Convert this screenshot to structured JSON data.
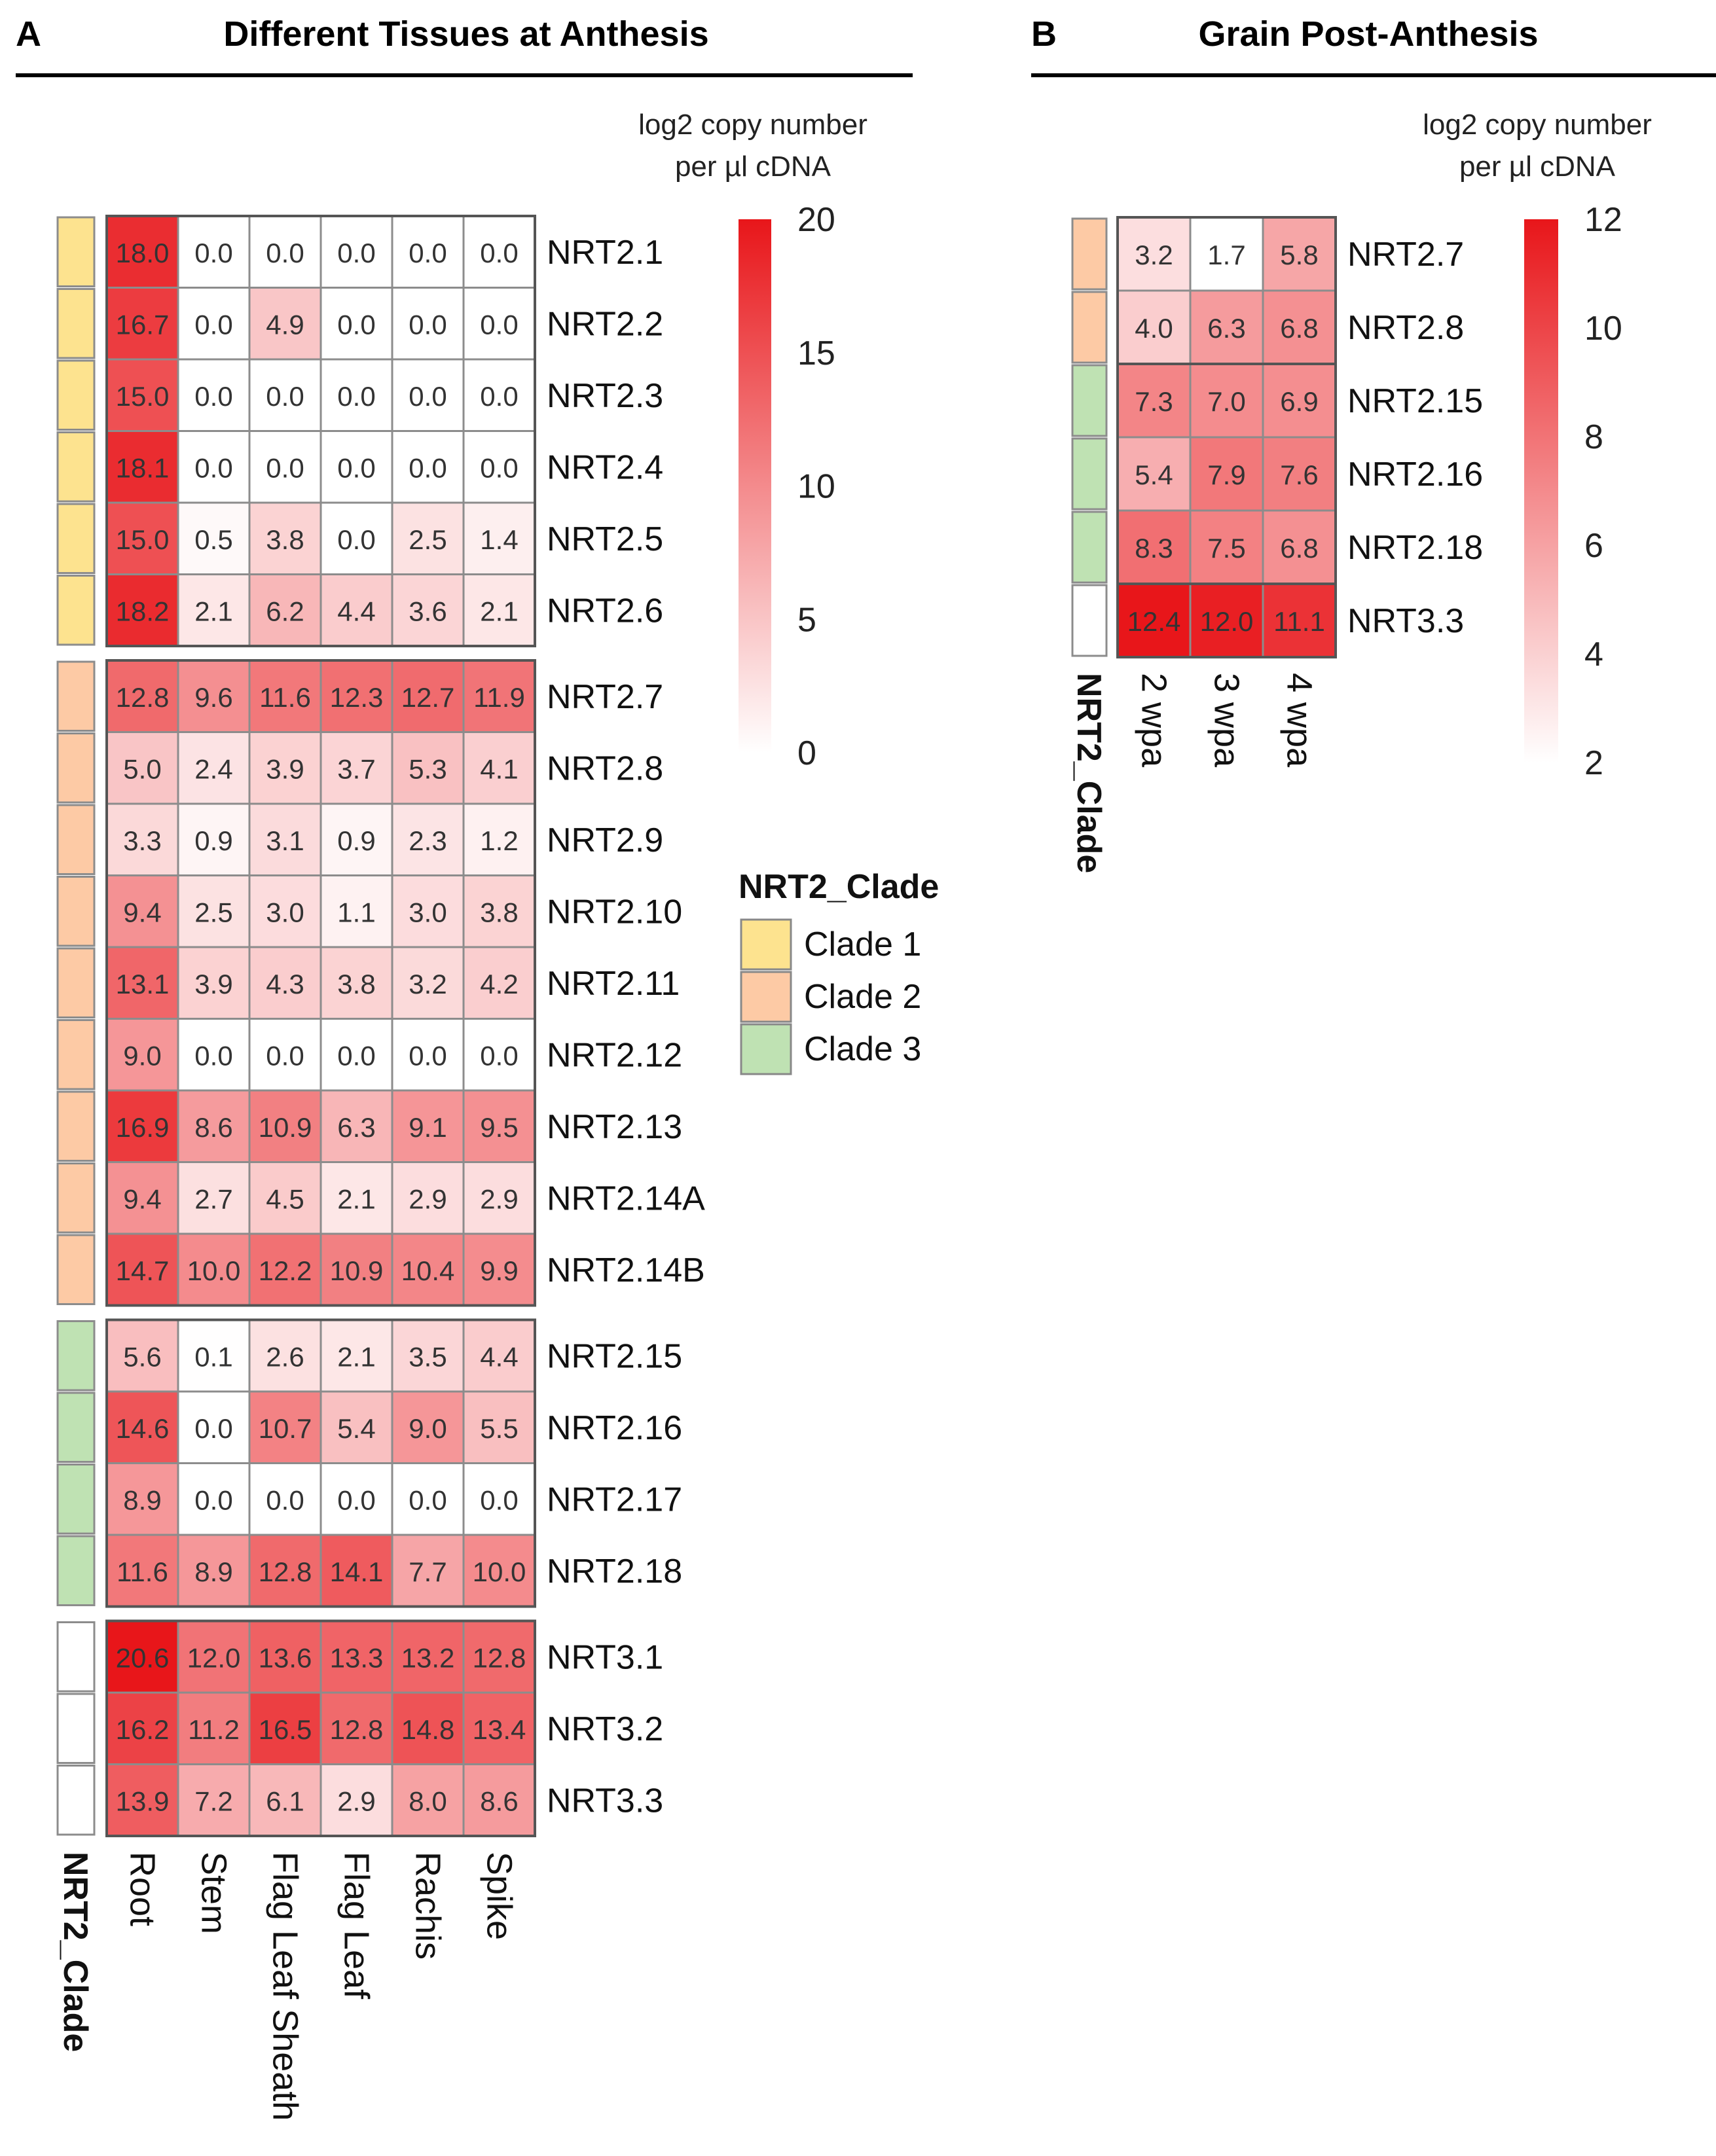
{
  "chart_data": [
    {
      "type": "heatmap",
      "panel_label": "A",
      "title": "Different Tissues at Anthesis",
      "legend_title_line1": "log2 copy number",
      "legend_title_line2": "per µl cDNA",
      "colorbar_ticks": [
        "20",
        "15",
        "10",
        "5",
        "0"
      ],
      "color_range": [
        0,
        20
      ],
      "annotation_title": "NRT2_Clade",
      "columns": [
        "Root",
        "Stem",
        "Flag Leaf Sheath",
        "Flag Leaf",
        "Rachis",
        "Spike"
      ],
      "row_groups": [
        {
          "clade": "Clade 1",
          "rows": [
            {
              "label": "NRT2.1",
              "values": [
                18.0,
                0.0,
                0.0,
                0.0,
                0.0,
                0.0
              ],
              "value_labels": [
                "18.0",
                "0.0",
                "0.0",
                "0.0",
                "0.0",
                "0.0"
              ]
            },
            {
              "label": "NRT2.2",
              "values": [
                16.7,
                0.0,
                4.9,
                0.0,
                0.0,
                0.0
              ],
              "value_labels": [
                "16.7",
                "0.0",
                "4.9",
                "0.0",
                "0.0",
                "0.0"
              ]
            },
            {
              "label": "NRT2.3",
              "values": [
                15.0,
                0.0,
                0.0,
                0.0,
                0.0,
                0.0
              ],
              "value_labels": [
                "15.0",
                "0.0",
                "0.0",
                "0.0",
                "0.0",
                "0.0"
              ]
            },
            {
              "label": "NRT2.4",
              "values": [
                18.1,
                0.0,
                0.0,
                0.0,
                0.0,
                0.0
              ],
              "value_labels": [
                "18.1",
                "0.0",
                "0.0",
                "0.0",
                "0.0",
                "0.0"
              ]
            },
            {
              "label": "NRT2.5",
              "values": [
                15.0,
                0.5,
                3.8,
                0.0,
                2.5,
                1.4
              ],
              "value_labels": [
                "15.0",
                "0.5",
                "3.8",
                "0.0",
                "2.5",
                "1.4"
              ]
            },
            {
              "label": "NRT2.6",
              "values": [
                18.2,
                2.1,
                6.2,
                4.4,
                3.6,
                2.1
              ],
              "value_labels": [
                "18.2",
                "2.1",
                "6.2",
                "4.4",
                "3.6",
                "2.1"
              ]
            }
          ]
        },
        {
          "clade": "Clade 2",
          "rows": [
            {
              "label": "NRT2.7",
              "values": [
                12.8,
                9.6,
                11.6,
                12.3,
                12.7,
                11.9
              ],
              "value_labels": [
                "12.8",
                "9.6",
                "11.6",
                "12.3",
                "12.7",
                "11.9"
              ]
            },
            {
              "label": "NRT2.8",
              "values": [
                5.0,
                2.4,
                3.9,
                3.7,
                5.3,
                4.1
              ],
              "value_labels": [
                "5.0",
                "2.4",
                "3.9",
                "3.7",
                "5.3",
                "4.1"
              ]
            },
            {
              "label": "NRT2.9",
              "values": [
                3.3,
                0.9,
                3.1,
                0.9,
                2.3,
                1.2
              ],
              "value_labels": [
                "3.3",
                "0.9",
                "3.1",
                "0.9",
                "2.3",
                "1.2"
              ]
            },
            {
              "label": "NRT2.10",
              "values": [
                9.4,
                2.5,
                3.0,
                1.1,
                3.0,
                3.8
              ],
              "value_labels": [
                "9.4",
                "2.5",
                "3.0",
                "1.1",
                "3.0",
                "3.8"
              ]
            },
            {
              "label": "NRT2.11",
              "values": [
                13.1,
                3.9,
                4.3,
                3.8,
                3.2,
                4.2
              ],
              "value_labels": [
                "13.1",
                "3.9",
                "4.3",
                "3.8",
                "3.2",
                "4.2"
              ]
            },
            {
              "label": "NRT2.12",
              "values": [
                9.0,
                0.0,
                0.0,
                0.0,
                0.0,
                0.0
              ],
              "value_labels": [
                "9.0",
                "0.0",
                "0.0",
                "0.0",
                "0.0",
                "0.0"
              ]
            },
            {
              "label": "NRT2.13",
              "values": [
                16.9,
                8.6,
                10.9,
                6.3,
                9.1,
                9.5
              ],
              "value_labels": [
                "16.9",
                "8.6",
                "10.9",
                "6.3",
                "9.1",
                "9.5"
              ]
            },
            {
              "label": "NRT2.14A",
              "values": [
                9.4,
                2.7,
                4.5,
                2.1,
                2.9,
                2.9
              ],
              "value_labels": [
                "9.4",
                "2.7",
                "4.5",
                "2.1",
                "2.9",
                "2.9"
              ]
            },
            {
              "label": "NRT2.14B",
              "values": [
                14.7,
                10.0,
                12.2,
                10.9,
                10.4,
                9.9
              ],
              "value_labels": [
                "14.7",
                "10.0",
                "12.2",
                "10.9",
                "10.4",
                "9.9"
              ]
            }
          ]
        },
        {
          "clade": "Clade 3",
          "rows": [
            {
              "label": "NRT2.15",
              "values": [
                5.6,
                0.1,
                2.6,
                2.1,
                3.5,
                4.4
              ],
              "value_labels": [
                "5.6",
                "0.1",
                "2.6",
                "2.1",
                "3.5",
                "4.4"
              ]
            },
            {
              "label": "NRT2.16",
              "values": [
                14.6,
                0.0,
                10.7,
                5.4,
                9.0,
                5.5
              ],
              "value_labels": [
                "14.6",
                "0.0",
                "10.7",
                "5.4",
                "9.0",
                "5.5"
              ]
            },
            {
              "label": "NRT2.17",
              "values": [
                8.9,
                0.0,
                0.0,
                0.0,
                0.0,
                0.0
              ],
              "value_labels": [
                "8.9",
                "0.0",
                "0.0",
                "0.0",
                "0.0",
                "0.0"
              ]
            },
            {
              "label": "NRT2.18",
              "values": [
                11.6,
                8.9,
                12.8,
                14.1,
                7.7,
                10.0
              ],
              "value_labels": [
                "11.6",
                "8.9",
                "12.8",
                "14.1",
                "7.7",
                "10.0"
              ]
            }
          ]
        },
        {
          "clade": "",
          "rows": [
            {
              "label": "NRT3.1",
              "values": [
                20.6,
                12.0,
                13.6,
                13.3,
                13.2,
                12.8
              ],
              "value_labels": [
                "20.6",
                "12.0",
                "13.6",
                "13.3",
                "13.2",
                "12.8"
              ]
            },
            {
              "label": "NRT3.2",
              "values": [
                16.2,
                11.2,
                16.5,
                12.8,
                14.8,
                13.4
              ],
              "value_labels": [
                "16.2",
                "11.2",
                "16.5",
                "12.8",
                "14.8",
                "13.4"
              ]
            },
            {
              "label": "NRT3.3",
              "values": [
                13.9,
                7.2,
                6.1,
                2.9,
                8.0,
                8.6
              ],
              "value_labels": [
                "13.9",
                "7.2",
                "6.1",
                "2.9",
                "8.0",
                "8.6"
              ]
            }
          ]
        }
      ]
    },
    {
      "type": "heatmap",
      "panel_label": "B",
      "title": "Grain Post-Anthesis",
      "legend_title_line1": "log2 copy number",
      "legend_title_line2": "per µl cDNA",
      "colorbar_ticks": [
        "12",
        "10",
        "8",
        "6",
        "4",
        "2"
      ],
      "color_range": [
        1.7,
        12.4
      ],
      "annotation_title": "NRT2_Clade",
      "columns": [
        "2 wpa",
        "3 wpa",
        "4 wpa"
      ],
      "row_groups": [
        {
          "clade": "Clade 2",
          "rows": [
            {
              "label": "NRT2.7",
              "values": [
                3.2,
                1.7,
                5.8
              ],
              "value_labels": [
                "3.2",
                "1.7",
                "5.8"
              ]
            },
            {
              "label": "NRT2.8",
              "values": [
                4.0,
                6.3,
                6.8
              ],
              "value_labels": [
                "4.0",
                "6.3",
                "6.8"
              ]
            }
          ]
        },
        {
          "clade": "Clade 3",
          "rows": [
            {
              "label": "NRT2.15",
              "values": [
                7.3,
                7.0,
                6.9
              ],
              "value_labels": [
                "7.3",
                "7.0",
                "6.9"
              ]
            },
            {
              "label": "NRT2.16",
              "values": [
                5.4,
                7.9,
                7.6
              ],
              "value_labels": [
                "5.4",
                "7.9",
                "7.6"
              ]
            },
            {
              "label": "NRT2.18",
              "values": [
                8.3,
                7.5,
                6.8
              ],
              "value_labels": [
                "8.3",
                "7.5",
                "6.8"
              ]
            }
          ]
        },
        {
          "clade": "",
          "rows": [
            {
              "label": "NRT3.3",
              "values": [
                12.4,
                12.0,
                11.1
              ],
              "value_labels": [
                "12.4",
                "12.0",
                "11.1"
              ]
            }
          ]
        }
      ]
    }
  ],
  "clade_legend": {
    "title": "NRT2_Clade",
    "items": [
      {
        "label": "Clade 1",
        "color": "#fde38f"
      },
      {
        "label": "Clade 2",
        "color": "#fdcaa5"
      },
      {
        "label": "Clade 3",
        "color": "#bfe2b3"
      }
    ]
  },
  "colors": {
    "low": "#ffffff",
    "high": "#e8161a",
    "clade_none": "#ffffff",
    "border": "#8c8c8c"
  }
}
